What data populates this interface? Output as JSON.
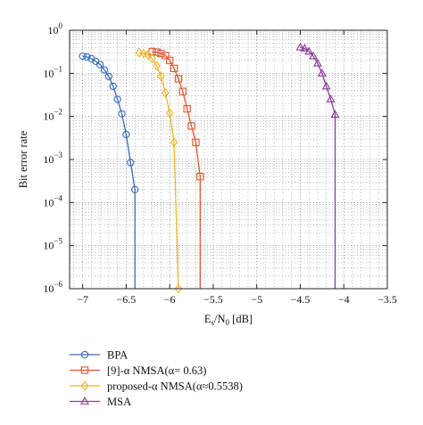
{
  "chart_data": {
    "type": "line",
    "title": "",
    "xlabel": {
      "main": "E",
      "sub1": "s",
      "mid": "/N",
      "sub2": "0",
      "tail": " [dB]"
    },
    "ylabel": "Bit error rate",
    "xlim": [
      -7.15,
      -3.5
    ],
    "ylim_exp": [
      -6,
      0
    ],
    "y_scale": "log",
    "grid": true,
    "legend_position": "bottom",
    "x_ticks": [
      {
        "value": -7,
        "label": "−7"
      },
      {
        "value": -6.5,
        "label": "−6.5"
      },
      {
        "value": -6,
        "label": "−6"
      },
      {
        "value": -5.5,
        "label": "−5.5"
      },
      {
        "value": -5,
        "label": "−5"
      },
      {
        "value": -4.5,
        "label": "−4.5"
      },
      {
        "value": -4,
        "label": "−4"
      },
      {
        "value": -3.5,
        "label": "−3.5"
      }
    ],
    "y_ticks": [
      {
        "exp": 0,
        "base": "10",
        "sup": "0"
      },
      {
        "exp": -1,
        "base": "10",
        "sup": "−1"
      },
      {
        "exp": -2,
        "base": "10",
        "sup": "−2"
      },
      {
        "exp": -3,
        "base": "10",
        "sup": "−3"
      },
      {
        "exp": -4,
        "base": "10",
        "sup": "−4"
      },
      {
        "exp": -5,
        "base": "10",
        "sup": "−5"
      },
      {
        "exp": -6,
        "base": "10",
        "sup": "−6"
      }
    ],
    "series": [
      {
        "key": "bpa",
        "name": "BPA",
        "color": "#3b6cb5",
        "marker": "circle",
        "drop_to_floor": true,
        "x": [
          -7.0,
          -6.95,
          -6.9,
          -6.85,
          -6.8,
          -6.75,
          -6.7,
          -6.65,
          -6.6,
          -6.55,
          -6.5,
          -6.45,
          -6.4
        ],
        "y": [
          0.25,
          0.24,
          0.22,
          0.19,
          0.16,
          0.12,
          0.085,
          0.05,
          0.025,
          0.0115,
          0.0038,
          0.00085,
          0.0002
        ]
      },
      {
        "key": "nmsa9",
        "name": "[9]-α NMSA(α= 0.63)",
        "color": "#e0572d",
        "marker": "square",
        "drop_to_floor": true,
        "x": [
          -6.2,
          -6.15,
          -6.1,
          -6.05,
          -6.0,
          -5.95,
          -5.9,
          -5.85,
          -5.8,
          -5.75,
          -5.7,
          -5.65
        ],
        "y": [
          0.32,
          0.31,
          0.29,
          0.26,
          0.2,
          0.13,
          0.075,
          0.038,
          0.015,
          0.006,
          0.0025,
          0.0004
        ]
      },
      {
        "key": "proposed",
        "name": "proposed-α NMSA(α≈0.5538)",
        "color": "#f0b528",
        "marker": "diamond",
        "drop_to_floor": false,
        "x": [
          -6.35,
          -6.3,
          -6.25,
          -6.2,
          -6.15,
          -6.1,
          -6.05,
          -6.0,
          -5.95,
          -5.9
        ],
        "y": [
          0.3,
          0.29,
          0.27,
          0.22,
          0.15,
          0.085,
          0.035,
          0.012,
          0.0025,
          1e-06
        ]
      },
      {
        "key": "msa",
        "name": "MSA",
        "color": "#8a3a9a",
        "marker": "triangle",
        "drop_to_floor": true,
        "x": [
          -4.5,
          -4.45,
          -4.4,
          -4.35,
          -4.3,
          -4.25,
          -4.2,
          -4.15,
          -4.1
        ],
        "y": [
          0.4,
          0.38,
          0.32,
          0.25,
          0.17,
          0.1,
          0.05,
          0.025,
          0.011
        ]
      }
    ]
  }
}
